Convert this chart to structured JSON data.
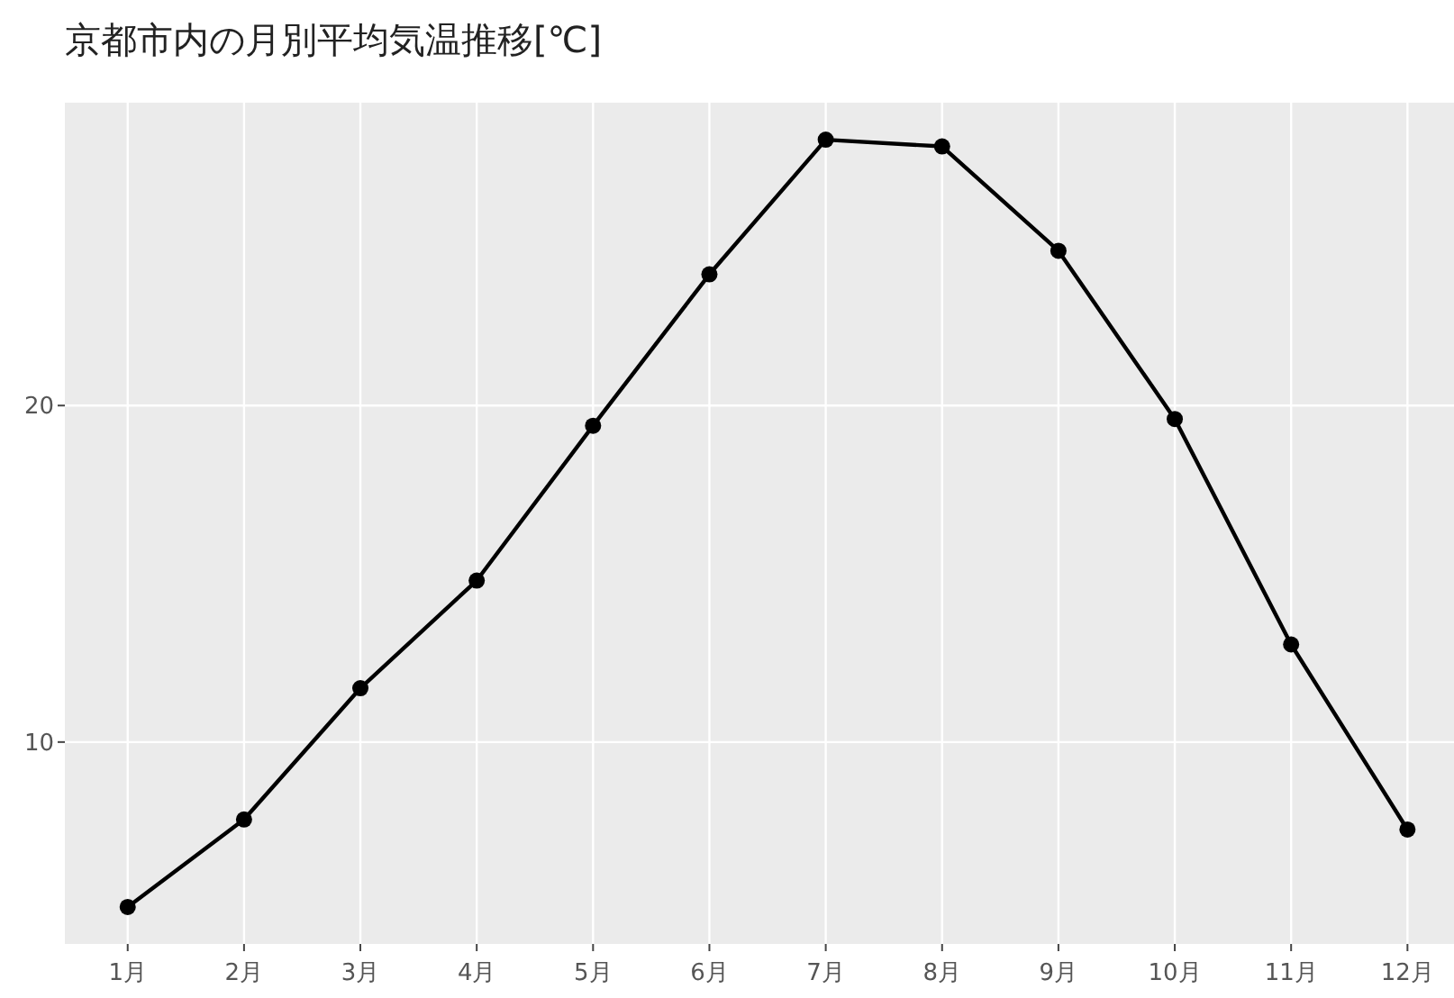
{
  "chart_data": {
    "type": "line",
    "title": "京都市内の月別平均気温推移[℃]",
    "categories": [
      "1月",
      "2月",
      "3月",
      "4月",
      "5月",
      "6月",
      "7月",
      "8月",
      "9月",
      "10月",
      "11月",
      "12月"
    ],
    "series": [
      {
        "color": "#000000",
        "values": [
          5.1,
          7.7,
          11.6,
          14.8,
          19.4,
          23.9,
          27.9,
          27.7,
          24.6,
          19.6,
          12.9,
          7.4
        ]
      }
    ],
    "ylim": [
      4,
      29
    ],
    "yticks": [
      10,
      20
    ],
    "grid": true,
    "marker": "circle",
    "line_style": "solid"
  }
}
